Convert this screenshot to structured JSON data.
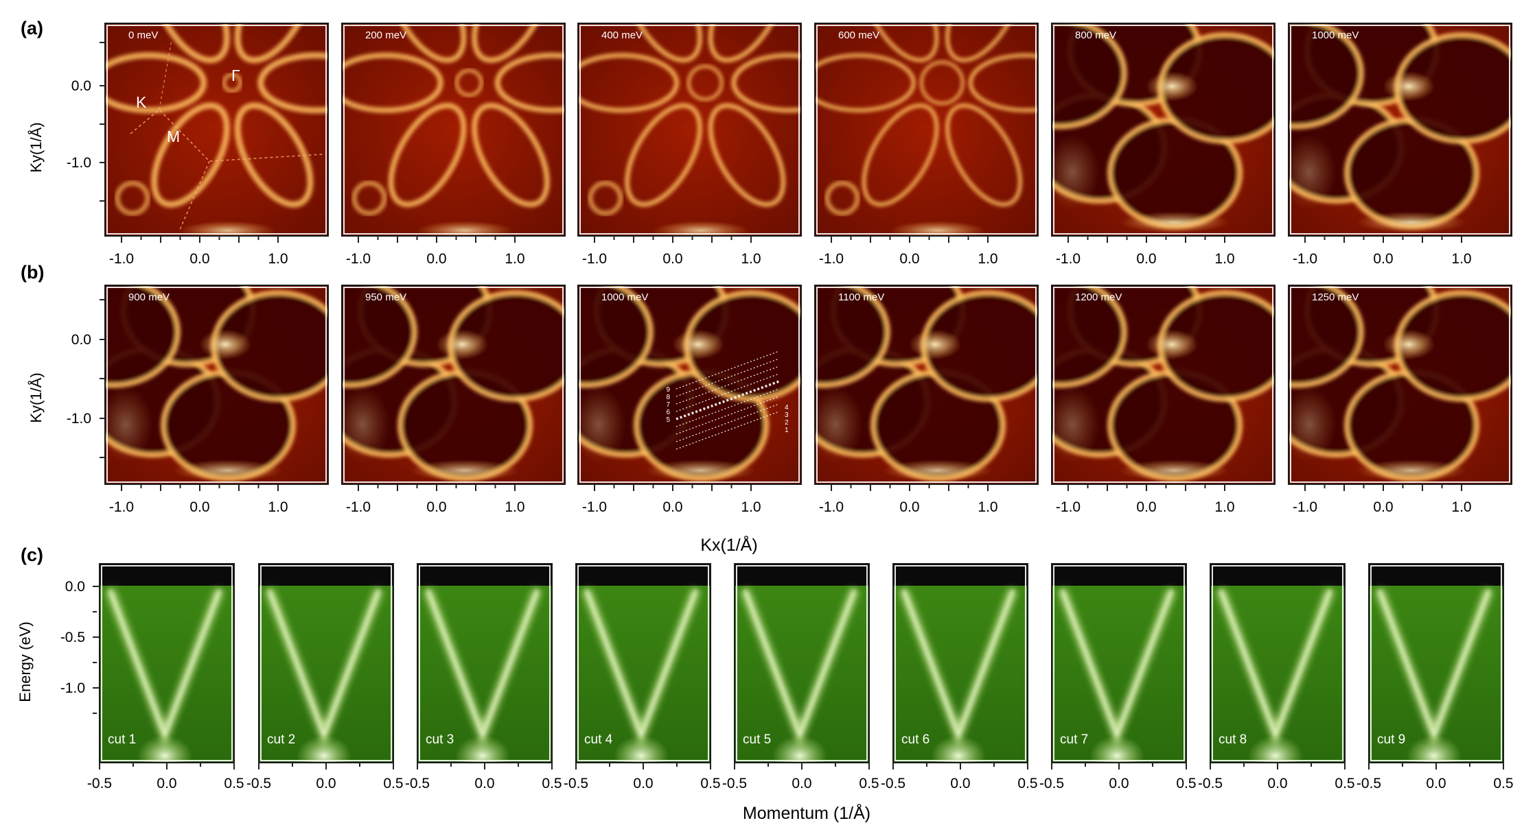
{
  "figure": {
    "row_a": {
      "label": "(a)",
      "ylabel": "Ky(1/Å)",
      "yticks": [
        "0.0",
        "-1.0"
      ],
      "xticks": [
        "-1.0",
        "0.0",
        "1.0"
      ],
      "panels": [
        "0 meV",
        "200 meV",
        "400 meV",
        "600 meV",
        "800 meV",
        "1000 meV"
      ],
      "annotations": {
        "gamma": "Γ",
        "k": "K",
        "m": "M"
      }
    },
    "row_b": {
      "label": "(b)",
      "ylabel": "Ky(1/Å)",
      "yticks": [
        "0.0",
        "-1.0"
      ],
      "xticks": [
        "-1.0",
        "0.0",
        "1.0"
      ],
      "xlabel": "Kx(1/Å)",
      "panels": [
        "900 meV",
        "950 meV",
        "1000 meV",
        "1100 meV",
        "1200 meV",
        "1250 meV"
      ],
      "cut_numbers_left": [
        "9",
        "8",
        "7",
        "6",
        "5"
      ],
      "cut_numbers_right": [
        "4",
        "3",
        "2",
        "1"
      ]
    },
    "row_c": {
      "label": "(c)",
      "ylabel": "Energy (eV)",
      "yticks": [
        "0.0",
        "-0.5",
        "-1.0"
      ],
      "xticks": [
        "-0.5",
        "0.0",
        "0.5"
      ],
      "xlabel": "Momentum (1/Å)",
      "panels": [
        "cut 1",
        "cut 2",
        "cut 3",
        "cut 4",
        "cut 5",
        "cut 6",
        "cut 7",
        "cut 8",
        "cut 9"
      ]
    }
  },
  "colors": {
    "arpes_map": "#8a1600",
    "arpes_bright": "#ffd070",
    "band_map": "#2f7a10",
    "band_bright": "#e4f5b8"
  }
}
